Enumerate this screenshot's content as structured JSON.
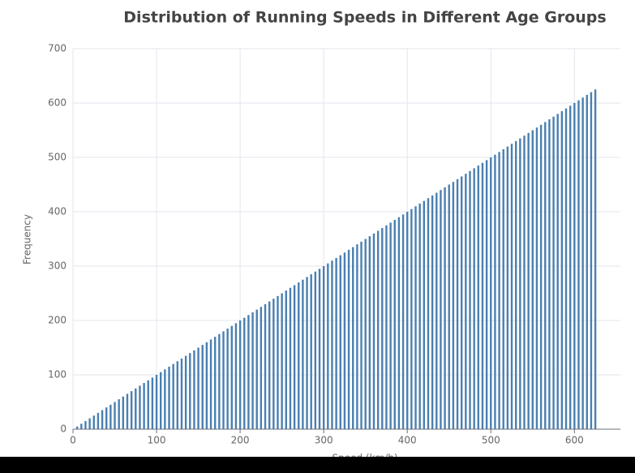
{
  "chart_data": {
    "type": "bar",
    "title": "Distribution of Running Speeds in Different Age Groups",
    "x_label": "Speed (km/h)",
    "y_label": "Frequency",
    "color": "#4a7fb0",
    "grid": true,
    "x": [
      5,
      10,
      15,
      20,
      25,
      30,
      35,
      40,
      45,
      50,
      55,
      60,
      65,
      70,
      75,
      80,
      85,
      90,
      95,
      100,
      105,
      110,
      115,
      120,
      125,
      130,
      135,
      140,
      145,
      150,
      155,
      160,
      165,
      170,
      175,
      180,
      185,
      190,
      195,
      200,
      205,
      210,
      215,
      220,
      225,
      230,
      235,
      240,
      245,
      250,
      255,
      260,
      265,
      270,
      275,
      280,
      285,
      290,
      295,
      300,
      305,
      310,
      315,
      320,
      325,
      330,
      335,
      340,
      345,
      350,
      355,
      360,
      365,
      370,
      375,
      380,
      385,
      390,
      395,
      400,
      405,
      410,
      415,
      420,
      425,
      430,
      435,
      440,
      445,
      450,
      455,
      460,
      465,
      470,
      475,
      480,
      485,
      490,
      495,
      500,
      505,
      510,
      515,
      520,
      525,
      530,
      535,
      540,
      545,
      550,
      555,
      560,
      565,
      570,
      575,
      580,
      585,
      590,
      595,
      600,
      605,
      610,
      615,
      620,
      625
    ],
    "values": [
      5,
      10,
      15,
      20,
      25,
      30,
      35,
      40,
      45,
      50,
      55,
      60,
      65,
      70,
      75,
      80,
      85,
      90,
      95,
      100,
      105,
      110,
      115,
      120,
      125,
      130,
      135,
      140,
      145,
      150,
      155,
      160,
      165,
      170,
      175,
      180,
      185,
      190,
      195,
      200,
      205,
      210,
      215,
      220,
      225,
      230,
      235,
      240,
      245,
      250,
      255,
      260,
      265,
      270,
      275,
      280,
      285,
      290,
      295,
      300,
      305,
      310,
      315,
      320,
      325,
      330,
      335,
      340,
      345,
      350,
      355,
      360,
      365,
      370,
      375,
      380,
      385,
      390,
      395,
      400,
      405,
      410,
      415,
      420,
      425,
      430,
      435,
      440,
      445,
      450,
      455,
      460,
      465,
      470,
      475,
      480,
      485,
      490,
      495,
      500,
      505,
      510,
      515,
      520,
      525,
      530,
      535,
      540,
      545,
      550,
      555,
      560,
      565,
      570,
      575,
      580,
      585,
      590,
      595,
      600,
      605,
      610,
      615,
      620,
      625
    ],
    "xlim": [
      0,
      655
    ],
    "xticks": [
      0,
      100,
      200,
      300,
      400,
      500,
      600
    ],
    "ylim": [
      0,
      700
    ],
    "yticks": [
      0,
      100,
      200,
      300,
      400,
      500,
      600,
      700
    ]
  }
}
